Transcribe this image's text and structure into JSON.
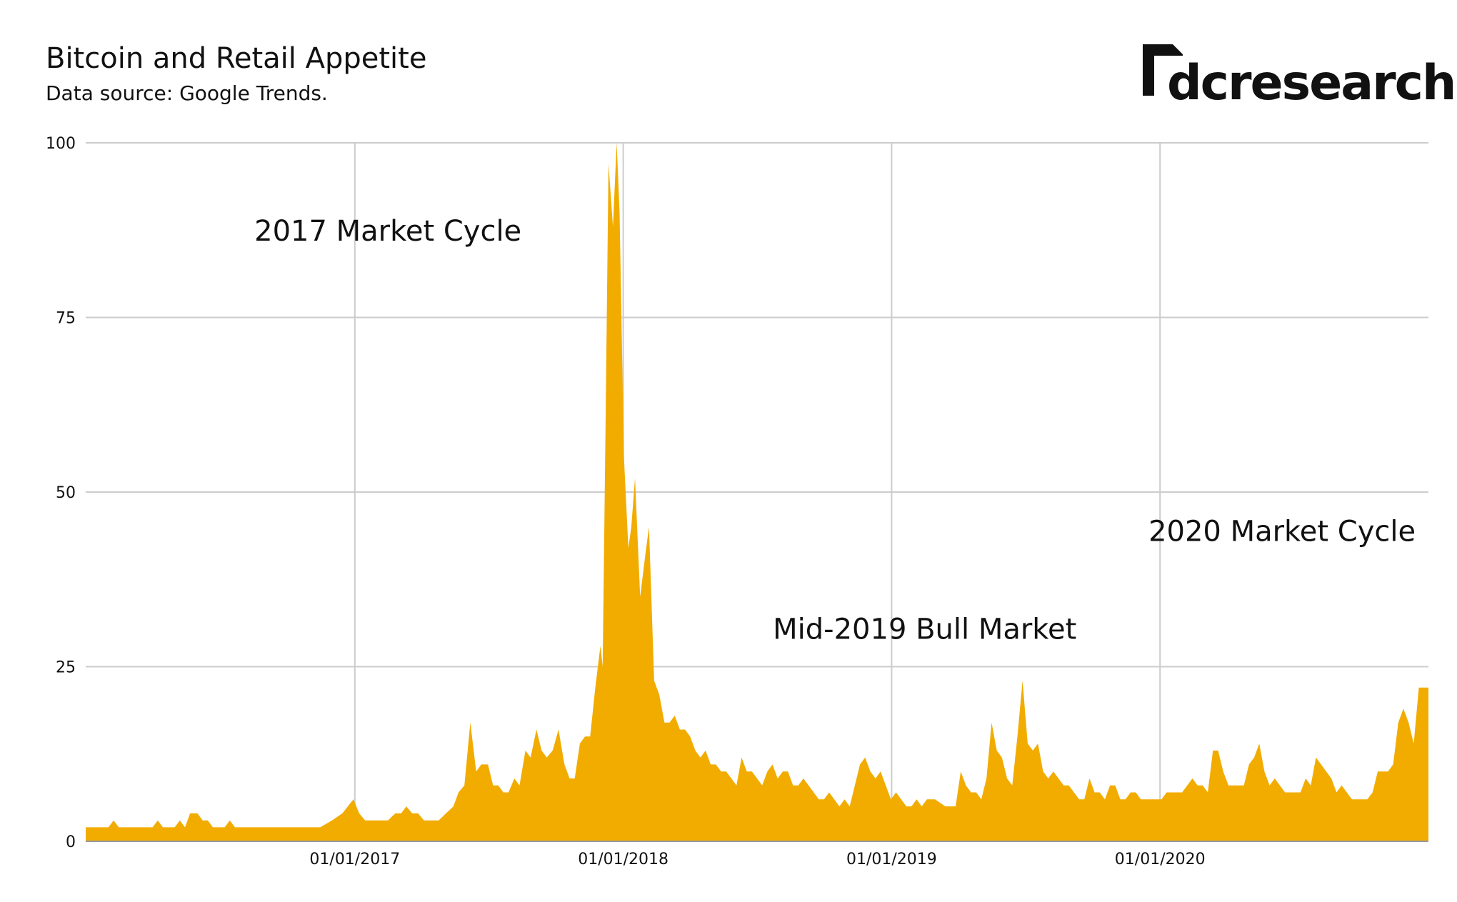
{
  "header": {
    "title": "Bitcoin and Retail Appetite",
    "subtitle": "Data source: Google Trends."
  },
  "logo": {
    "text": "dcresearch"
  },
  "chart_data": {
    "type": "area",
    "title": "Bitcoin and Retail Appetite",
    "subtitle": "Data source: Google Trends.",
    "xlabel": "",
    "ylabel": "",
    "x_range": [
      "2016-01-01",
      "2020-12-31"
    ],
    "ylim": [
      0,
      100
    ],
    "y_ticks": [
      0,
      25,
      50,
      75,
      100
    ],
    "x_ticks": [
      {
        "date": "2017-01-01",
        "label": "01/01/2017"
      },
      {
        "date": "2018-01-01",
        "label": "01/01/2018"
      },
      {
        "date": "2019-01-01",
        "label": "01/01/2019"
      },
      {
        "date": "2020-01-01",
        "label": "01/01/2020"
      }
    ],
    "grid": true,
    "fill_color": "#F2AC00",
    "series": [
      {
        "points": [
          [
            "2016-01-01",
            2
          ],
          [
            "2016-02-01",
            2
          ],
          [
            "2016-02-08",
            3
          ],
          [
            "2016-02-15",
            2
          ],
          [
            "2016-04-01",
            2
          ],
          [
            "2016-04-08",
            3
          ],
          [
            "2016-04-15",
            2
          ],
          [
            "2016-05-01",
            2
          ],
          [
            "2016-05-08",
            3
          ],
          [
            "2016-05-15",
            2
          ],
          [
            "2016-05-22",
            4
          ],
          [
            "2016-06-01",
            4
          ],
          [
            "2016-06-08",
            3
          ],
          [
            "2016-06-15",
            3
          ],
          [
            "2016-06-22",
            2
          ],
          [
            "2016-07-01",
            2
          ],
          [
            "2016-07-08",
            2
          ],
          [
            "2016-07-15",
            3
          ],
          [
            "2016-07-22",
            2
          ],
          [
            "2016-08-01",
            2
          ],
          [
            "2016-10-01",
            2
          ],
          [
            "2016-11-01",
            2
          ],
          [
            "2016-11-15",
            2
          ],
          [
            "2016-12-01",
            3
          ],
          [
            "2016-12-15",
            4
          ],
          [
            "2016-12-30",
            6
          ],
          [
            "2017-01-07",
            4
          ],
          [
            "2017-01-15",
            3
          ],
          [
            "2017-02-01",
            3
          ],
          [
            "2017-02-15",
            3
          ],
          [
            "2017-02-25",
            4
          ],
          [
            "2017-03-05",
            4
          ],
          [
            "2017-03-12",
            5
          ],
          [
            "2017-03-20",
            4
          ],
          [
            "2017-03-28",
            4
          ],
          [
            "2017-04-05",
            3
          ],
          [
            "2017-04-15",
            3
          ],
          [
            "2017-04-25",
            3
          ],
          [
            "2017-05-05",
            4
          ],
          [
            "2017-05-15",
            5
          ],
          [
            "2017-05-22",
            7
          ],
          [
            "2017-05-30",
            8
          ],
          [
            "2017-06-07",
            17
          ],
          [
            "2017-06-15",
            10
          ],
          [
            "2017-06-22",
            11
          ],
          [
            "2017-07-01",
            11
          ],
          [
            "2017-07-08",
            8
          ],
          [
            "2017-07-15",
            8
          ],
          [
            "2017-07-22",
            7
          ],
          [
            "2017-07-29",
            7
          ],
          [
            "2017-08-06",
            9
          ],
          [
            "2017-08-13",
            8
          ],
          [
            "2017-08-21",
            13
          ],
          [
            "2017-08-28",
            12
          ],
          [
            "2017-09-05",
            16
          ],
          [
            "2017-09-12",
            13
          ],
          [
            "2017-09-19",
            12
          ],
          [
            "2017-09-27",
            13
          ],
          [
            "2017-10-05",
            16
          ],
          [
            "2017-10-13",
            11
          ],
          [
            "2017-10-20",
            9
          ],
          [
            "2017-10-27",
            9
          ],
          [
            "2017-11-03",
            14
          ],
          [
            "2017-11-10",
            15
          ],
          [
            "2017-11-17",
            15
          ],
          [
            "2017-11-24",
            22
          ],
          [
            "2017-12-01",
            28
          ],
          [
            "2017-12-04",
            25
          ],
          [
            "2017-12-08",
            60
          ],
          [
            "2017-12-12",
            97
          ],
          [
            "2017-12-18",
            88
          ],
          [
            "2017-12-23",
            100
          ],
          [
            "2017-12-27",
            90
          ],
          [
            "2018-01-02",
            55
          ],
          [
            "2018-01-08",
            42
          ],
          [
            "2018-01-12",
            45
          ],
          [
            "2018-01-17",
            52
          ],
          [
            "2018-01-24",
            35
          ],
          [
            "2018-01-31",
            41
          ],
          [
            "2018-02-05",
            45
          ],
          [
            "2018-02-12",
            23
          ],
          [
            "2018-02-19",
            21
          ],
          [
            "2018-02-26",
            17
          ],
          [
            "2018-03-05",
            17
          ],
          [
            "2018-03-12",
            18
          ],
          [
            "2018-03-19",
            16
          ],
          [
            "2018-03-26",
            16
          ],
          [
            "2018-04-02",
            15
          ],
          [
            "2018-04-09",
            13
          ],
          [
            "2018-04-16",
            12
          ],
          [
            "2018-04-23",
            13
          ],
          [
            "2018-04-30",
            11
          ],
          [
            "2018-05-07",
            11
          ],
          [
            "2018-05-14",
            10
          ],
          [
            "2018-05-21",
            10
          ],
          [
            "2018-05-28",
            9
          ],
          [
            "2018-06-04",
            8
          ],
          [
            "2018-06-11",
            12
          ],
          [
            "2018-06-18",
            10
          ],
          [
            "2018-06-25",
            10
          ],
          [
            "2018-07-02",
            9
          ],
          [
            "2018-07-09",
            8
          ],
          [
            "2018-07-16",
            10
          ],
          [
            "2018-07-23",
            11
          ],
          [
            "2018-07-30",
            9
          ],
          [
            "2018-08-06",
            10
          ],
          [
            "2018-08-13",
            10
          ],
          [
            "2018-08-20",
            8
          ],
          [
            "2018-08-27",
            8
          ],
          [
            "2018-09-03",
            9
          ],
          [
            "2018-09-10",
            8
          ],
          [
            "2018-09-17",
            7
          ],
          [
            "2018-09-24",
            6
          ],
          [
            "2018-10-01",
            6
          ],
          [
            "2018-10-08",
            7
          ],
          [
            "2018-10-15",
            6
          ],
          [
            "2018-10-22",
            5
          ],
          [
            "2018-10-29",
            6
          ],
          [
            "2018-11-05",
            5
          ],
          [
            "2018-11-12",
            8
          ],
          [
            "2018-11-19",
            11
          ],
          [
            "2018-11-26",
            12
          ],
          [
            "2018-12-03",
            10
          ],
          [
            "2018-12-10",
            9
          ],
          [
            "2018-12-17",
            10
          ],
          [
            "2018-12-24",
            8
          ],
          [
            "2018-12-31",
            6
          ],
          [
            "2019-01-07",
            7
          ],
          [
            "2019-01-14",
            6
          ],
          [
            "2019-01-21",
            5
          ],
          [
            "2019-01-28",
            5
          ],
          [
            "2019-02-04",
            6
          ],
          [
            "2019-02-11",
            5
          ],
          [
            "2019-02-18",
            6
          ],
          [
            "2019-03-01",
            6
          ],
          [
            "2019-03-15",
            5
          ],
          [
            "2019-03-29",
            5
          ],
          [
            "2019-04-05",
            10
          ],
          [
            "2019-04-12",
            8
          ],
          [
            "2019-04-19",
            7
          ],
          [
            "2019-04-26",
            7
          ],
          [
            "2019-05-03",
            6
          ],
          [
            "2019-05-10",
            9
          ],
          [
            "2019-05-17",
            17
          ],
          [
            "2019-05-24",
            13
          ],
          [
            "2019-05-31",
            12
          ],
          [
            "2019-06-07",
            9
          ],
          [
            "2019-06-14",
            8
          ],
          [
            "2019-06-21",
            15
          ],
          [
            "2019-06-28",
            23
          ],
          [
            "2019-07-05",
            14
          ],
          [
            "2019-07-12",
            13
          ],
          [
            "2019-07-19",
            14
          ],
          [
            "2019-07-26",
            10
          ],
          [
            "2019-08-02",
            9
          ],
          [
            "2019-08-09",
            10
          ],
          [
            "2019-08-16",
            9
          ],
          [
            "2019-08-23",
            8
          ],
          [
            "2019-08-30",
            8
          ],
          [
            "2019-09-06",
            7
          ],
          [
            "2019-09-13",
            6
          ],
          [
            "2019-09-20",
            6
          ],
          [
            "2019-09-27",
            9
          ],
          [
            "2019-10-04",
            7
          ],
          [
            "2019-10-11",
            7
          ],
          [
            "2019-10-18",
            6
          ],
          [
            "2019-10-25",
            8
          ],
          [
            "2019-11-01",
            8
          ],
          [
            "2019-11-08",
            6
          ],
          [
            "2019-11-15",
            6
          ],
          [
            "2019-11-22",
            7
          ],
          [
            "2019-11-29",
            7
          ],
          [
            "2019-12-06",
            6
          ],
          [
            "2019-12-13",
            6
          ],
          [
            "2019-12-20",
            6
          ],
          [
            "2019-12-27",
            6
          ],
          [
            "2020-01-03",
            6
          ],
          [
            "2020-01-10",
            7
          ],
          [
            "2020-01-17",
            7
          ],
          [
            "2020-01-24",
            7
          ],
          [
            "2020-01-31",
            7
          ],
          [
            "2020-02-07",
            8
          ],
          [
            "2020-02-14",
            9
          ],
          [
            "2020-02-21",
            8
          ],
          [
            "2020-02-28",
            8
          ],
          [
            "2020-03-06",
            7
          ],
          [
            "2020-03-13",
            13
          ],
          [
            "2020-03-20",
            13
          ],
          [
            "2020-03-27",
            10
          ],
          [
            "2020-04-03",
            8
          ],
          [
            "2020-04-10",
            8
          ],
          [
            "2020-04-17",
            8
          ],
          [
            "2020-04-24",
            8
          ],
          [
            "2020-05-01",
            11
          ],
          [
            "2020-05-08",
            12
          ],
          [
            "2020-05-15",
            14
          ],
          [
            "2020-05-22",
            10
          ],
          [
            "2020-05-29",
            8
          ],
          [
            "2020-06-05",
            9
          ],
          [
            "2020-06-12",
            8
          ],
          [
            "2020-06-19",
            7
          ],
          [
            "2020-06-26",
            7
          ],
          [
            "2020-07-03",
            7
          ],
          [
            "2020-07-10",
            7
          ],
          [
            "2020-07-17",
            9
          ],
          [
            "2020-07-24",
            8
          ],
          [
            "2020-07-31",
            12
          ],
          [
            "2020-08-07",
            11
          ],
          [
            "2020-08-14",
            10
          ],
          [
            "2020-08-21",
            9
          ],
          [
            "2020-08-28",
            7
          ],
          [
            "2020-09-04",
            8
          ],
          [
            "2020-09-11",
            7
          ],
          [
            "2020-09-18",
            6
          ],
          [
            "2020-09-25",
            6
          ],
          [
            "2020-10-02",
            6
          ],
          [
            "2020-10-09",
            6
          ],
          [
            "2020-10-16",
            7
          ],
          [
            "2020-10-23",
            10
          ],
          [
            "2020-10-30",
            10
          ],
          [
            "2020-11-06",
            10
          ],
          [
            "2020-11-13",
            11
          ],
          [
            "2020-11-20",
            17
          ],
          [
            "2020-11-27",
            19
          ],
          [
            "2020-12-04",
            17
          ],
          [
            "2020-12-11",
            14
          ],
          [
            "2020-12-18",
            22
          ],
          [
            "2020-12-31",
            22
          ]
        ]
      }
    ],
    "annotations": [
      {
        "text": "2017 Market Cycle",
        "date": "2017-02-15",
        "y": 86
      },
      {
        "text": "Mid-2019 Bull Market",
        "date": "2019-02-15",
        "y": 29
      },
      {
        "text": "2020 Market Cycle",
        "date": "2020-06-15",
        "y": 43
      }
    ]
  }
}
